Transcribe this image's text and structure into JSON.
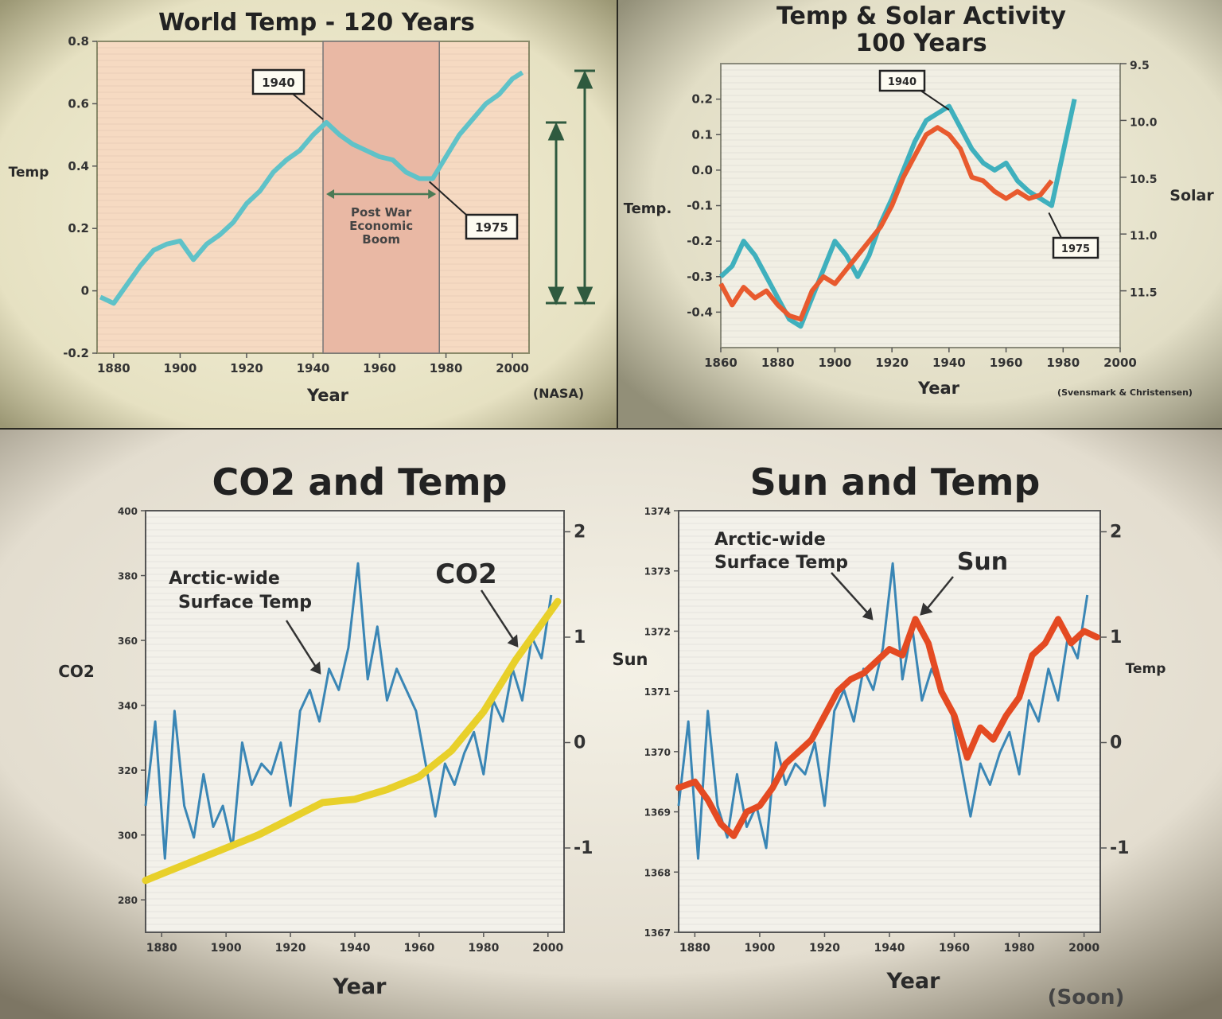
{
  "chart_data": [
    {
      "type": "line",
      "title": "World Temp - 120 Years",
      "xlabel": "Year",
      "ylabel": "Temp",
      "source": "(NASA)",
      "xlim": [
        1875,
        2005
      ],
      "ylim": [
        -0.2,
        0.8
      ],
      "xticks": [
        "1880",
        "1900",
        "1920",
        "1940",
        "1960",
        "1980",
        "2000"
      ],
      "yticks": [
        "0.8",
        "0.6",
        "0.4",
        "0.2",
        "0",
        "-0.2"
      ],
      "color": "#5fc2c8",
      "shaded_band": {
        "x": [
          1943,
          1978
        ],
        "label": [
          "Post War",
          "Economic",
          "Boom"
        ]
      },
      "annotations": [
        {
          "text": "1940",
          "x": 1943,
          "y": 0.55
        },
        {
          "text": "1975",
          "x": 1975,
          "y": 0.35
        }
      ],
      "series": [
        {
          "x": [
            1876,
            1880,
            1884,
            1888,
            1892,
            1896,
            1900,
            1904,
            1908,
            1912,
            1916,
            1920,
            1924,
            1928,
            1932,
            1936,
            1940,
            1944,
            1948,
            1952,
            1956,
            1960,
            1964,
            1968,
            1972,
            1976,
            1980,
            1984,
            1988,
            1992,
            1996,
            2000,
            2003
          ],
          "y": [
            -0.02,
            -0.04,
            0.02,
            0.08,
            0.13,
            0.15,
            0.16,
            0.1,
            0.15,
            0.18,
            0.22,
            0.28,
            0.32,
            0.38,
            0.42,
            0.45,
            0.5,
            0.54,
            0.5,
            0.47,
            0.45,
            0.43,
            0.42,
            0.38,
            0.36,
            0.36,
            0.43,
            0.5,
            0.55,
            0.6,
            0.63,
            0.68,
            0.7
          ]
        }
      ]
    },
    {
      "type": "line",
      "title": "Temp & Solar Activity 100 Years",
      "xlabel": "Year",
      "ylabel": "Temp.",
      "y2label": "Solar",
      "source": "(Svensmark & Christensen)",
      "xlim": [
        1860,
        2000
      ],
      "ylim": [
        -0.5,
        0.3
      ],
      "y2lim": [
        9.5,
        12.0
      ],
      "xticks": [
        "1860",
        "1880",
        "1900",
        "1920",
        "1940",
        "1960",
        "1980",
        "2000"
      ],
      "yticks": [
        "0.2",
        "0.1",
        "0.0",
        "-0.1",
        "-0.2",
        "-0.3",
        "-0.4"
      ],
      "y2ticks": [
        "9.5",
        "10.0",
        "10.5",
        "11.0",
        "11.5"
      ],
      "annotations": [
        {
          "text": "1940",
          "x": 1940,
          "y": 0.17
        },
        {
          "text": "1975",
          "x": 1975,
          "y": -0.12
        }
      ],
      "series": [
        {
          "color": "#3fb0bd",
          "x": [
            1860,
            1864,
            1868,
            1872,
            1876,
            1880,
            1884,
            1888,
            1892,
            1896,
            1900,
            1904,
            1908,
            1912,
            1916,
            1920,
            1924,
            1928,
            1932,
            1936,
            1940,
            1944,
            1948,
            1952,
            1956,
            1960,
            1964,
            1968,
            1972,
            1976,
            1980,
            1984
          ],
          "y": [
            -0.3,
            -0.27,
            -0.2,
            -0.24,
            -0.3,
            -0.36,
            -0.42,
            -0.44,
            -0.36,
            -0.28,
            -0.2,
            -0.24,
            -0.3,
            -0.24,
            -0.15,
            -0.08,
            0.0,
            0.08,
            0.14,
            0.16,
            0.18,
            0.12,
            0.06,
            0.02,
            0.0,
            0.02,
            -0.03,
            -0.06,
            -0.08,
            -0.1,
            0.05,
            0.2
          ]
        },
        {
          "color": "#e85a2e",
          "x": [
            1860,
            1864,
            1868,
            1872,
            1876,
            1880,
            1884,
            1888,
            1892,
            1896,
            1900,
            1904,
            1908,
            1912,
            1916,
            1920,
            1924,
            1928,
            1932,
            1936,
            1940,
            1944,
            1948,
            1952,
            1956,
            1960,
            1964,
            1968,
            1972,
            1976
          ],
          "y": [
            -0.32,
            -0.38,
            -0.33,
            -0.36,
            -0.34,
            -0.38,
            -0.41,
            -0.42,
            -0.34,
            -0.3,
            -0.32,
            -0.28,
            -0.24,
            -0.2,
            -0.16,
            -0.1,
            -0.02,
            0.04,
            0.1,
            0.12,
            0.1,
            0.06,
            -0.02,
            -0.03,
            -0.06,
            -0.08,
            -0.06,
            -0.08,
            -0.07,
            -0.03
          ]
        }
      ]
    },
    {
      "type": "line",
      "title": "CO2 and Temp",
      "xlabel": "Year",
      "ylabel": "CO2",
      "xlim": [
        1875,
        2005
      ],
      "ylim": [
        270,
        400
      ],
      "y2lim": [
        -1.8,
        2.2
      ],
      "xticks": [
        "1880",
        "1900",
        "1920",
        "1940",
        "1960",
        "1980",
        "2000"
      ],
      "yticks": [
        "400",
        "380",
        "360",
        "340",
        "320",
        "300",
        "280"
      ],
      "y2ticks": [
        "2",
        "1",
        "0",
        "-1"
      ],
      "annotations": [
        {
          "text": "Arctic-wide",
          "x": 1925,
          "y": 1.5
        },
        {
          "text": "Surface Temp",
          "x": 1925,
          "y": 1.3
        },
        {
          "text": "CO2",
          "x": 1985,
          "y": 1.6
        }
      ],
      "series": [
        {
          "name": "Arctic-wide Surface Temp",
          "color": "#3a86b5",
          "x": [
            1875,
            1878,
            1881,
            1884,
            1887,
            1890,
            1893,
            1896,
            1899,
            1902,
            1905,
            1908,
            1911,
            1914,
            1917,
            1920,
            1923,
            1926,
            1929,
            1932,
            1935,
            1938,
            1941,
            1944,
            1947,
            1950,
            1953,
            1956,
            1959,
            1962,
            1965,
            1968,
            1971,
            1974,
            1977,
            1980,
            1983,
            1986,
            1989,
            1992,
            1995,
            1998,
            2001
          ],
          "y": [
            -0.6,
            0.2,
            -1.1,
            0.3,
            -0.6,
            -0.9,
            -0.3,
            -0.8,
            -0.6,
            -1.0,
            0.0,
            -0.4,
            -0.2,
            -0.3,
            0.0,
            -0.6,
            0.3,
            0.5,
            0.2,
            0.7,
            0.5,
            0.9,
            1.7,
            0.6,
            1.1,
            0.4,
            0.7,
            0.5,
            0.3,
            -0.2,
            -0.7,
            -0.2,
            -0.4,
            -0.1,
            0.1,
            -0.3,
            0.4,
            0.2,
            0.7,
            0.4,
            1.0,
            0.8,
            1.4
          ]
        },
        {
          "name": "CO2",
          "color": "#e8d02a",
          "x": [
            1875,
            1880,
            1890,
            1900,
            1910,
            1920,
            1930,
            1940,
            1950,
            1960,
            1970,
            1980,
            1990,
            2003
          ],
          "y": [
            286,
            288,
            292,
            296,
            300,
            305,
            310,
            311,
            314,
            318,
            326,
            338,
            354,
            372
          ]
        }
      ]
    },
    {
      "type": "line",
      "title": "Sun and Temp",
      "xlabel": "Year",
      "ylabel": "Sun",
      "y2label": "Temp",
      "source": "(Soon)",
      "xlim": [
        1875,
        2005
      ],
      "ylim": [
        1367,
        1374
      ],
      "y2lim": [
        -1.8,
        2.2
      ],
      "xticks": [
        "1880",
        "1900",
        "1920",
        "1940",
        "1960",
        "1980",
        "2000"
      ],
      "yticks": [
        "1374",
        "1373",
        "1372",
        "1371",
        "1370",
        "1369",
        "1368",
        "1367"
      ],
      "y2ticks": [
        "2",
        "1",
        "0",
        "-1"
      ],
      "annotations": [
        {
          "text": "Arctic-wide",
          "x": 1927,
          "y": 1373.5
        },
        {
          "text": "Surface Temp",
          "x": 1927,
          "y": 1373.1
        },
        {
          "text": "Sun",
          "x": 1960,
          "y": 1373.1
        }
      ],
      "series": [
        {
          "name": "Arctic-wide Surface Temp",
          "color": "#3a86b5",
          "x": [
            1875,
            1878,
            1881,
            1884,
            1887,
            1890,
            1893,
            1896,
            1899,
            1902,
            1905,
            1908,
            1911,
            1914,
            1917,
            1920,
            1923,
            1926,
            1929,
            1932,
            1935,
            1938,
            1941,
            1944,
            1947,
            1950,
            1953,
            1956,
            1959,
            1962,
            1965,
            1968,
            1971,
            1974,
            1977,
            1980,
            1983,
            1986,
            1989,
            1992,
            1995,
            1998,
            2001
          ],
          "y": [
            -0.6,
            0.2,
            -1.1,
            0.3,
            -0.6,
            -0.9,
            -0.3,
            -0.8,
            -0.6,
            -1.0,
            0.0,
            -0.4,
            -0.2,
            -0.3,
            0.0,
            -0.6,
            0.3,
            0.5,
            0.2,
            0.7,
            0.5,
            0.9,
            1.7,
            0.6,
            1.1,
            0.4,
            0.7,
            0.5,
            0.3,
            -0.2,
            -0.7,
            -0.2,
            -0.4,
            -0.1,
            0.1,
            -0.3,
            0.4,
            0.2,
            0.7,
            0.4,
            1.0,
            0.8,
            1.4
          ]
        },
        {
          "name": "Sun",
          "color": "#e44a22",
          "x": [
            1875,
            1880,
            1884,
            1888,
            1892,
            1896,
            1900,
            1904,
            1908,
            1912,
            1916,
            1920,
            1924,
            1928,
            1932,
            1936,
            1940,
            1944,
            1948,
            1952,
            1956,
            1960,
            1964,
            1968,
            1972,
            1976,
            1980,
            1984,
            1988,
            1992,
            1996,
            2000,
            2004
          ],
          "y": [
            1369.4,
            1369.5,
            1369.2,
            1368.8,
            1368.6,
            1369.0,
            1369.1,
            1369.4,
            1369.8,
            1370.0,
            1370.2,
            1370.6,
            1371.0,
            1371.2,
            1371.3,
            1371.5,
            1371.7,
            1371.6,
            1372.2,
            1371.8,
            1371.0,
            1370.6,
            1369.9,
            1370.4,
            1370.2,
            1370.6,
            1370.9,
            1371.6,
            1371.8,
            1372.2,
            1371.8,
            1372.0,
            1371.9
          ]
        }
      ]
    }
  ]
}
